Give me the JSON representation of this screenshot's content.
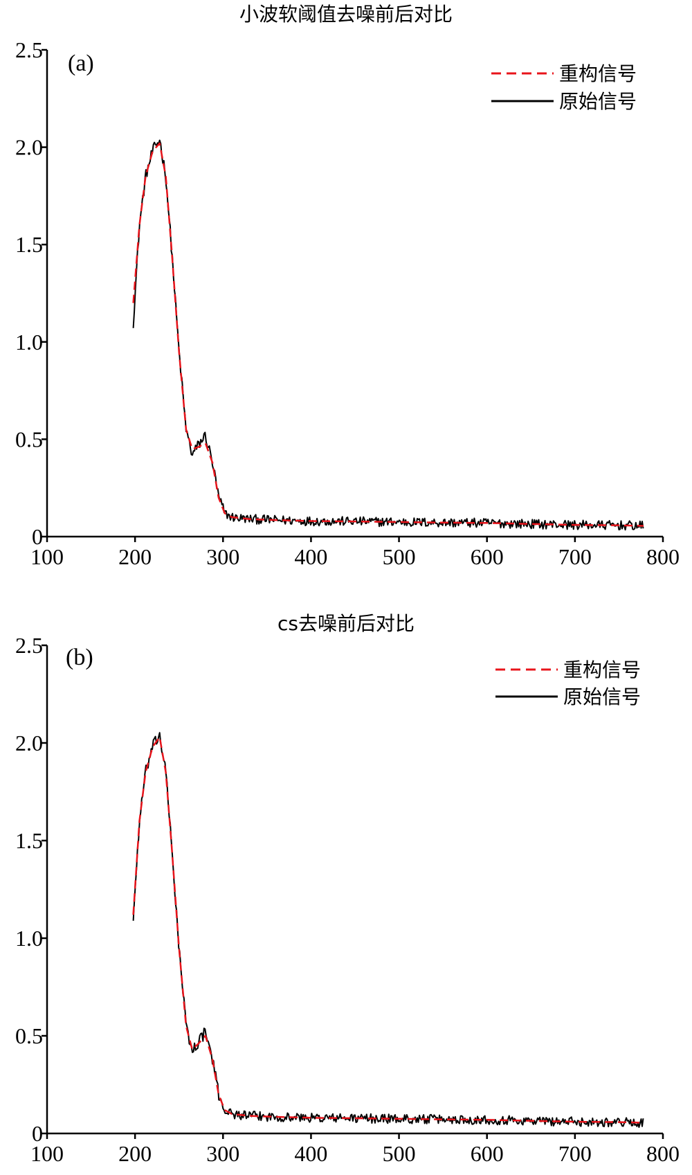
{
  "colors": {
    "reconstructed": "#e8141b",
    "original": "#000000"
  },
  "charts": [
    {
      "title": "小波软阈值去噪前后对比",
      "panel_label": "(a)",
      "legend": [
        {
          "label": "重构信号",
          "style": "dashed",
          "color": "#e8141b"
        },
        {
          "label": "原始信号",
          "style": "solid",
          "color": "#000000"
        }
      ]
    },
    {
      "title": "cs去噪前后对比",
      "panel_label": "(b)",
      "legend": [
        {
          "label": "重构信号",
          "style": "dashed",
          "color": "#e8141b"
        },
        {
          "label": "原始信号",
          "style": "solid",
          "color": "#000000"
        }
      ]
    }
  ],
  "chart_data": [
    {
      "type": "line",
      "title": "小波软阈值去噪前后对比",
      "xlabel": "",
      "ylabel": "",
      "xlim": [
        100,
        800
      ],
      "ylim": [
        0,
        2.5
      ],
      "xticks": [
        100,
        200,
        300,
        400,
        500,
        600,
        700,
        800
      ],
      "yticks": [
        0,
        0.5,
        1.0,
        1.5,
        2.0,
        2.5
      ],
      "ytick_labels": [
        "0",
        "0.5",
        "1.0",
        "1.5",
        "2.0",
        "2.5"
      ],
      "legend_position": "top-right",
      "grid": false,
      "series": [
        {
          "name": "重构信号",
          "x": [
            198,
            205,
            212,
            220,
            228,
            235,
            242,
            250,
            258,
            265,
            272,
            280,
            288,
            295,
            302,
            310,
            330,
            360,
            400,
            450,
            500,
            550,
            600,
            650,
            700,
            750,
            778
          ],
          "y": [
            1.2,
            1.6,
            1.85,
            1.98,
            2.02,
            1.85,
            1.45,
            0.95,
            0.55,
            0.45,
            0.46,
            0.48,
            0.38,
            0.2,
            0.12,
            0.1,
            0.09,
            0.085,
            0.08,
            0.078,
            0.075,
            0.072,
            0.07,
            0.065,
            0.06,
            0.058,
            0.055
          ]
        },
        {
          "name": "原始信号",
          "x": [
            198,
            205,
            212,
            220,
            228,
            235,
            242,
            250,
            258,
            265,
            272,
            280,
            288,
            295,
            302,
            310,
            330,
            360,
            400,
            450,
            500,
            550,
            600,
            650,
            700,
            750,
            778
          ],
          "y": [
            1.1,
            1.6,
            1.85,
            1.98,
            2.04,
            1.85,
            1.45,
            0.95,
            0.55,
            0.42,
            0.47,
            0.52,
            0.38,
            0.2,
            0.12,
            0.1,
            0.09,
            0.085,
            0.08,
            0.078,
            0.075,
            0.072,
            0.07,
            0.065,
            0.06,
            0.058,
            0.055
          ],
          "noise": 0.012
        }
      ]
    },
    {
      "type": "line",
      "title": "cs去噪前后对比",
      "xlabel": "",
      "ylabel": "",
      "xlim": [
        100,
        800
      ],
      "ylim": [
        0,
        2.5
      ],
      "xticks": [
        100,
        200,
        300,
        400,
        500,
        600,
        700,
        800
      ],
      "yticks": [
        0,
        0.5,
        1.0,
        1.5,
        2.0,
        2.5
      ],
      "ytick_labels": [
        "0",
        "0.5",
        "1.0",
        "1.5",
        "2.0",
        "2.5"
      ],
      "legend_position": "top-right",
      "grid": false,
      "series": [
        {
          "name": "重构信号",
          "x": [
            198,
            205,
            212,
            220,
            228,
            235,
            242,
            250,
            258,
            265,
            272,
            280,
            288,
            295,
            302,
            310,
            330,
            360,
            400,
            450,
            500,
            550,
            600,
            650,
            700,
            750,
            778
          ],
          "y": [
            1.12,
            1.6,
            1.85,
            1.98,
            2.03,
            1.85,
            1.45,
            0.95,
            0.55,
            0.43,
            0.46,
            0.5,
            0.38,
            0.2,
            0.12,
            0.1,
            0.09,
            0.085,
            0.08,
            0.078,
            0.075,
            0.072,
            0.07,
            0.065,
            0.06,
            0.058,
            0.055
          ]
        },
        {
          "name": "原始信号",
          "x": [
            198,
            205,
            212,
            220,
            228,
            235,
            242,
            250,
            258,
            265,
            272,
            280,
            288,
            295,
            302,
            310,
            330,
            360,
            400,
            450,
            500,
            550,
            600,
            650,
            700,
            750,
            778
          ],
          "y": [
            1.1,
            1.6,
            1.85,
            1.98,
            2.04,
            1.85,
            1.45,
            0.95,
            0.55,
            0.42,
            0.47,
            0.52,
            0.38,
            0.2,
            0.12,
            0.1,
            0.09,
            0.085,
            0.08,
            0.078,
            0.075,
            0.072,
            0.07,
            0.065,
            0.06,
            0.058,
            0.055
          ],
          "noise": 0.012
        }
      ]
    }
  ]
}
